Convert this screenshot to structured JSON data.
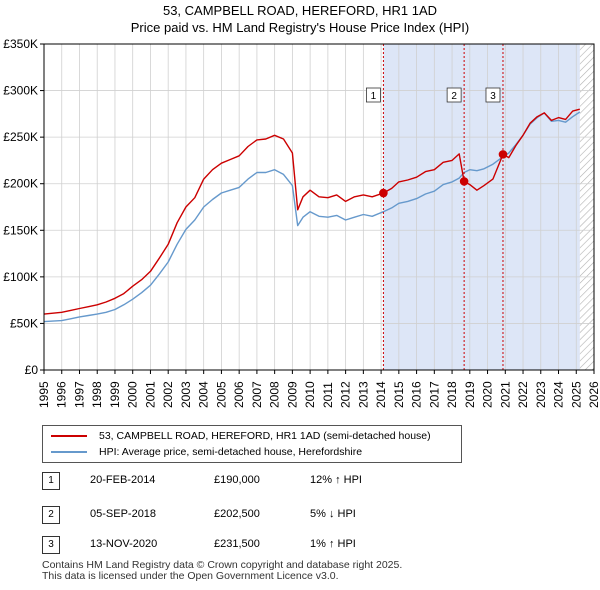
{
  "chart_data": {
    "type": "line",
    "title": "53, CAMPBELL ROAD, HEREFORD, HR1 1AD",
    "subtitle": "Price paid vs. HM Land Registry's House Price Index (HPI)",
    "xlabel": "",
    "ylabel": "",
    "xlim": [
      1995,
      2026
    ],
    "ylim": [
      0,
      350000
    ],
    "y_ticks": [
      0,
      50000,
      100000,
      150000,
      200000,
      250000,
      300000,
      350000
    ],
    "y_tick_labels": [
      "£0",
      "£50K",
      "£100K",
      "£150K",
      "£200K",
      "£250K",
      "£300K",
      "£350K"
    ],
    "x_ticks": [
      1995,
      1996,
      1997,
      1998,
      1999,
      2000,
      2001,
      2002,
      2003,
      2004,
      2005,
      2006,
      2007,
      2008,
      2009,
      2010,
      2011,
      2012,
      2013,
      2014,
      2015,
      2016,
      2017,
      2018,
      2019,
      2020,
      2021,
      2022,
      2023,
      2024,
      2025,
      2026
    ],
    "x_tick_labels": [
      "1995",
      "1996",
      "1997",
      "1998",
      "1999",
      "2000",
      "2001",
      "2002",
      "2003",
      "2004",
      "2005",
      "2006",
      "2007",
      "2008",
      "2009",
      "2010",
      "2011",
      "2012",
      "2013",
      "2014",
      "2015",
      "2016",
      "2017",
      "2018",
      "2019",
      "2020",
      "2021",
      "2022",
      "2023",
      "2024",
      "2025",
      "2026"
    ],
    "grid": true,
    "shaded_period": [
      2014.13,
      2025.2
    ],
    "future_hatch_from": 2025.2,
    "series": [
      {
        "name": "53, CAMPBELL ROAD, HEREFORD, HR1 1AD (semi-detached house)",
        "color": "#cc0000",
        "x": [
          1995.0,
          1995.5,
          1996.0,
          1996.5,
          1997.0,
          1997.5,
          1998.0,
          1998.5,
          1999.0,
          1999.5,
          2000.0,
          2000.5,
          2001.0,
          2001.5,
          2002.0,
          2002.5,
          2003.0,
          2003.5,
          2004.0,
          2004.5,
          2005.0,
          2005.5,
          2006.0,
          2006.5,
          2007.0,
          2007.5,
          2008.0,
          2008.5,
          2009.0,
          2009.3,
          2009.6,
          2010.0,
          2010.5,
          2011.0,
          2011.5,
          2012.0,
          2012.5,
          2013.0,
          2013.5,
          2014.13,
          2014.6,
          2015.0,
          2015.5,
          2016.0,
          2016.5,
          2017.0,
          2017.5,
          2018.0,
          2018.4,
          2018.68,
          2019.0,
          2019.4,
          2019.8,
          2020.3,
          2020.87,
          2021.2,
          2021.6,
          2022.0,
          2022.4,
          2022.8,
          2023.2,
          2023.6,
          2024.0,
          2024.4,
          2024.8,
          2025.2
        ],
        "values": [
          60000,
          61000,
          62000,
          64000,
          66000,
          68000,
          70000,
          73000,
          77000,
          82000,
          90000,
          97000,
          106000,
          120000,
          135000,
          158000,
          175000,
          185000,
          205000,
          215000,
          222000,
          226000,
          230000,
          240000,
          247000,
          248000,
          252000,
          248000,
          233000,
          172000,
          186000,
          193000,
          186000,
          185000,
          188000,
          181000,
          186000,
          188000,
          186000,
          190000,
          195000,
          202000,
          204000,
          207000,
          213000,
          215000,
          223000,
          225000,
          232000,
          202500,
          199000,
          193000,
          198000,
          205000,
          231500,
          228000,
          241000,
          252000,
          265000,
          272000,
          276000,
          268000,
          271000,
          269000,
          278000,
          280000
        ]
      },
      {
        "name": "HPI: Average price, semi-detached house, Herefordshire",
        "color": "#6699cc",
        "x": [
          1995.0,
          1995.5,
          1996.0,
          1996.5,
          1997.0,
          1997.5,
          1998.0,
          1998.5,
          1999.0,
          1999.5,
          2000.0,
          2000.5,
          2001.0,
          2001.5,
          2002.0,
          2002.5,
          2003.0,
          2003.5,
          2004.0,
          2004.5,
          2005.0,
          2005.5,
          2006.0,
          2006.5,
          2007.0,
          2007.5,
          2008.0,
          2008.5,
          2009.0,
          2009.3,
          2009.6,
          2010.0,
          2010.5,
          2011.0,
          2011.5,
          2012.0,
          2012.5,
          2013.0,
          2013.5,
          2014.13,
          2014.6,
          2015.0,
          2015.5,
          2016.0,
          2016.5,
          2017.0,
          2017.5,
          2018.0,
          2018.4,
          2018.68,
          2019.0,
          2019.4,
          2019.8,
          2020.3,
          2020.87,
          2021.2,
          2021.6,
          2022.0,
          2022.4,
          2022.8,
          2023.2,
          2023.6,
          2024.0,
          2024.4,
          2024.8,
          2025.2
        ],
        "values": [
          52000,
          52500,
          53000,
          55000,
          57000,
          58500,
          60000,
          62000,
          65000,
          70000,
          76000,
          83000,
          91000,
          103000,
          116000,
          135000,
          151000,
          161000,
          175000,
          183000,
          190000,
          193000,
          196000,
          205000,
          212000,
          212000,
          215000,
          210000,
          198000,
          155000,
          164000,
          170000,
          165000,
          164000,
          166000,
          161000,
          164000,
          167000,
          165000,
          170000,
          174000,
          179000,
          181000,
          184000,
          189000,
          192000,
          199000,
          202000,
          206000,
          212000,
          215000,
          214000,
          216000,
          221000,
          229000,
          233000,
          242000,
          252000,
          264000,
          271000,
          276000,
          267000,
          268000,
          266000,
          272000,
          277000
        ]
      }
    ],
    "transactions": [
      {
        "label": "1",
        "date": "20-FEB-2014",
        "x": 2014.13,
        "price": 190000,
        "price_text": "£190,000",
        "hpi_text": "12% ↑ HPI"
      },
      {
        "label": "2",
        "date": "05-SEP-2018",
        "x": 2018.68,
        "price": 202500,
        "price_text": "£202,500",
        "hpi_text": "5% ↓ HPI"
      },
      {
        "label": "3",
        "date": "13-NOV-2020",
        "x": 2020.87,
        "price": 231500,
        "price_text": "£231,500",
        "hpi_text": "1% ↑ HPI"
      }
    ]
  },
  "legend": {
    "property_label": "53, CAMPBELL ROAD, HEREFORD, HR1 1AD (semi-detached house)",
    "hpi_label": "HPI: Average price, semi-detached house, Herefordshire"
  },
  "footer": {
    "line1": "Contains HM Land Registry data © Crown copyright and database right 2025.",
    "line2": "This data is licensed under the Open Government Licence v3.0."
  },
  "colors": {
    "property": "#cc0000",
    "hpi": "#6699cc",
    "shade": "#dde6f7",
    "grid": "#d0d0d0"
  }
}
